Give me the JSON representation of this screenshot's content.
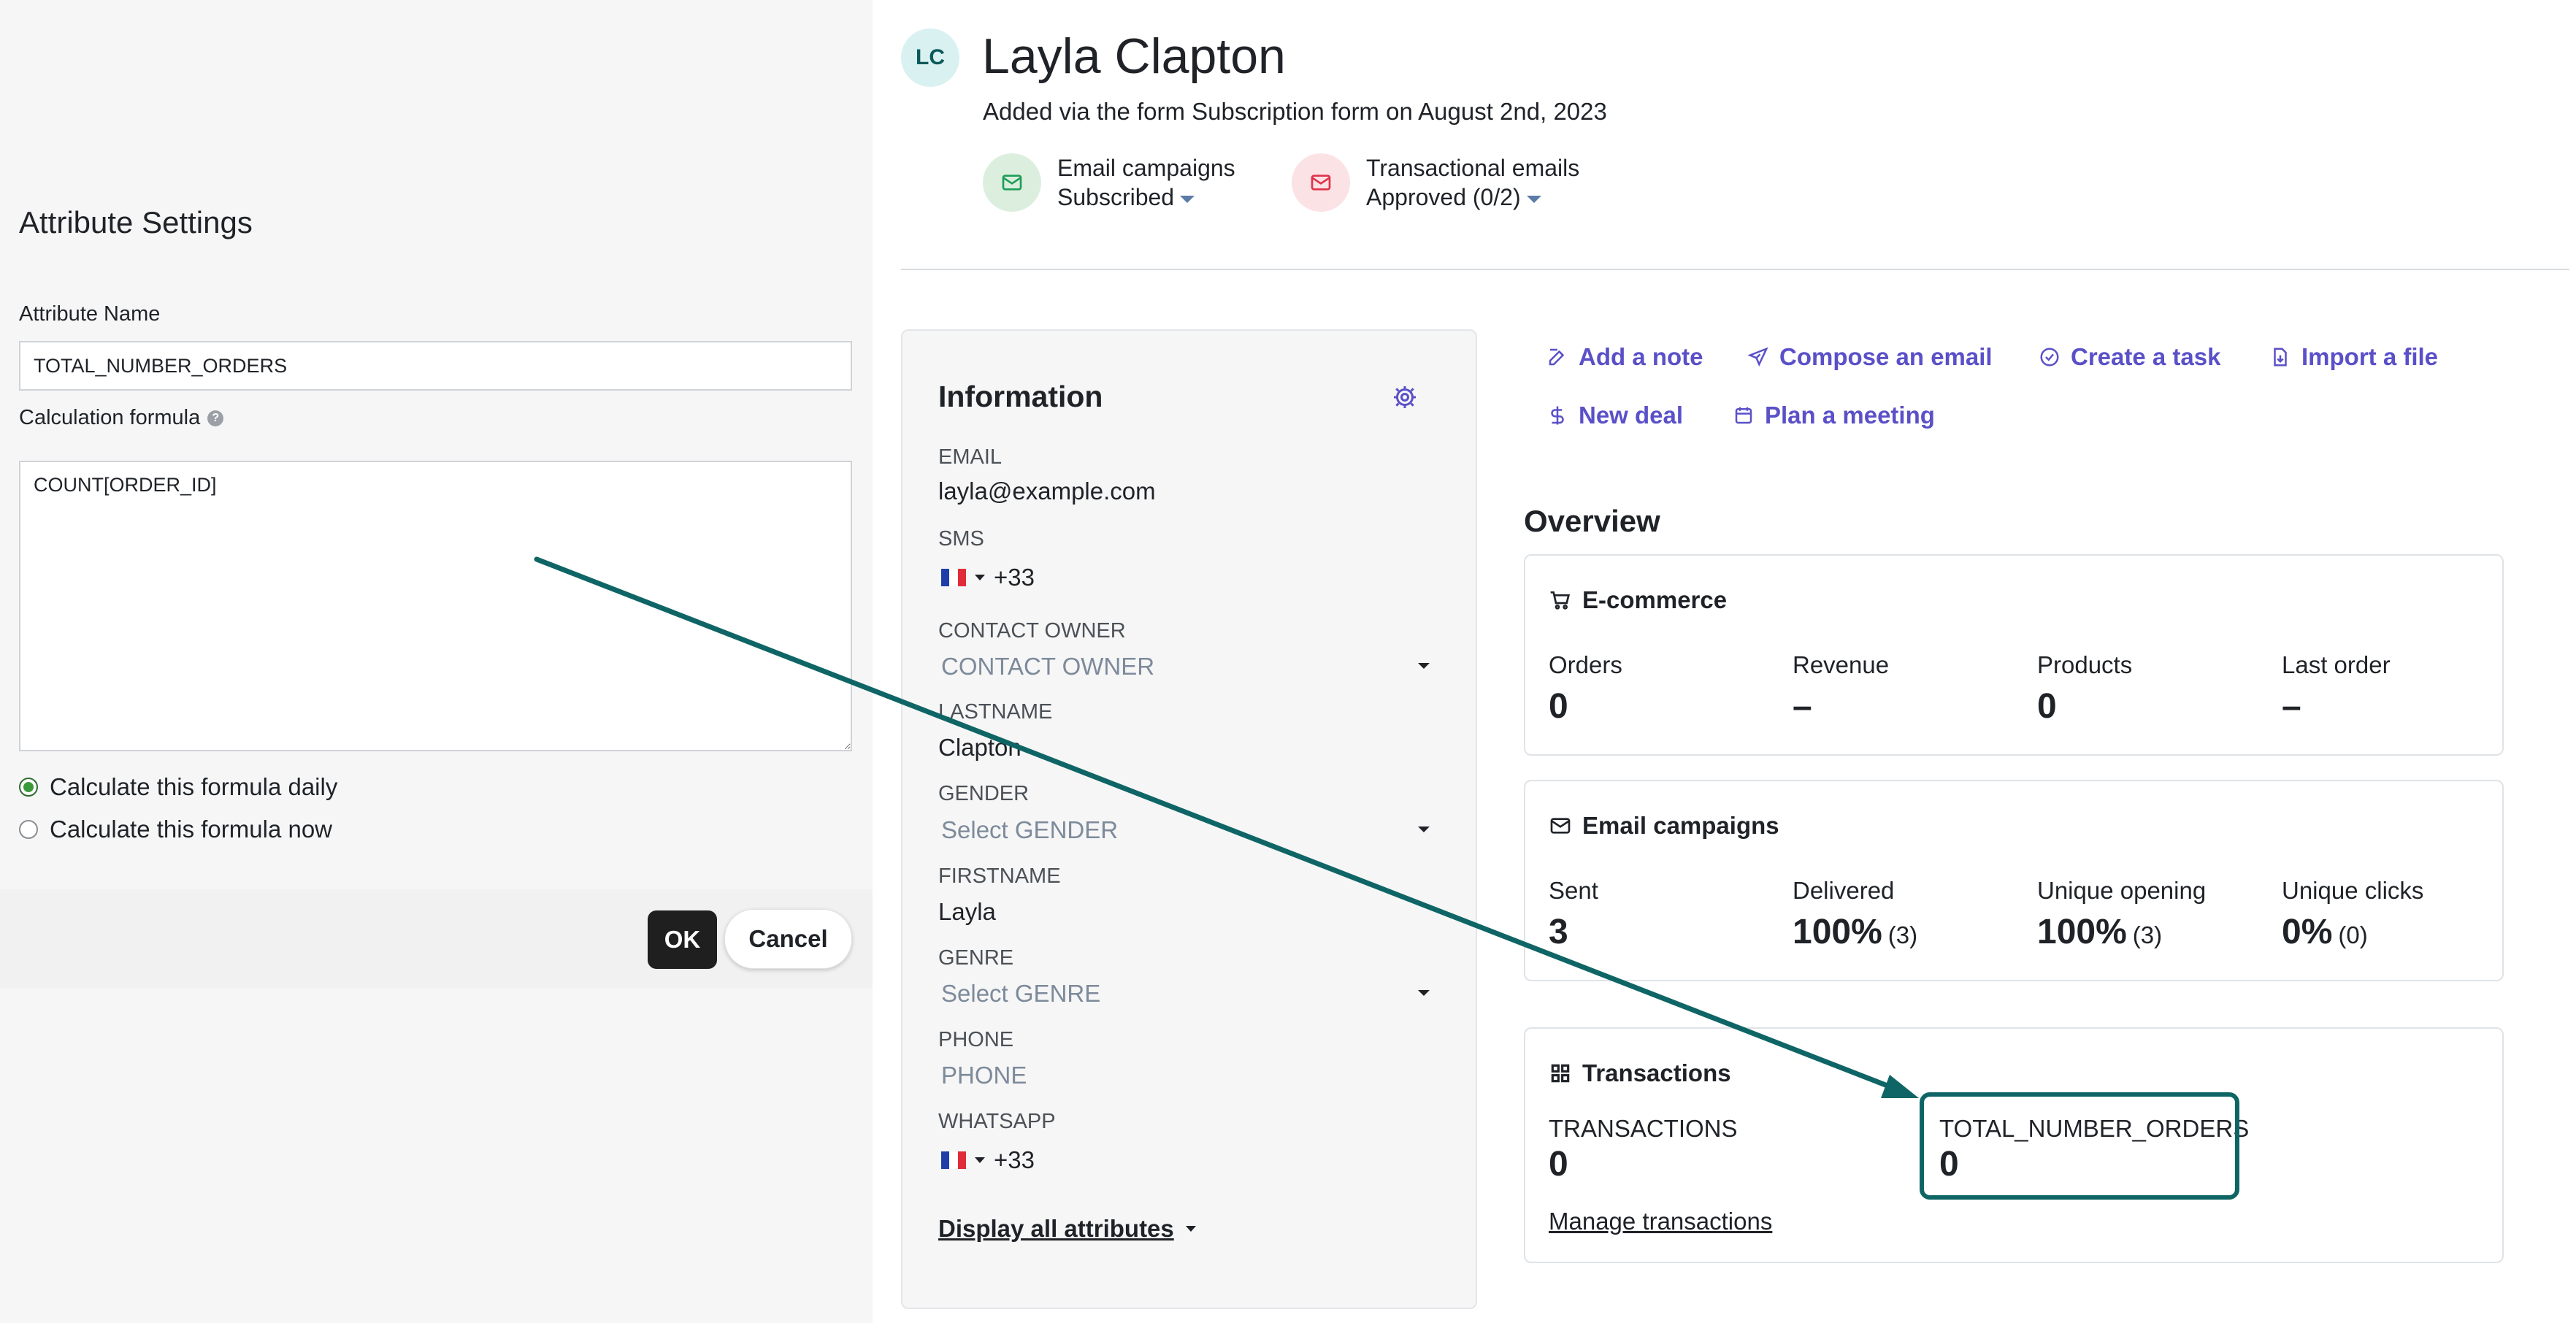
{
  "attribute_settings": {
    "title": "Attribute Settings",
    "name_label": "Attribute Name",
    "name_value": "TOTAL_NUMBER_ORDERS",
    "formula_label": "Calculation formula",
    "help_glyph": "?",
    "formula_value": "COUNT[ORDER_ID]",
    "radio_daily": "Calculate this formula daily",
    "radio_now": "Calculate this formula now",
    "selected": "daily",
    "ok_label": "OK",
    "cancel_label": "Cancel"
  },
  "contact": {
    "initials": "LC",
    "name": "Layla Clapton",
    "subtitle": "Added via the form Subscription form on August 2nd, 2023",
    "email_campaigns": {
      "title": "Email campaigns",
      "status": "Subscribed",
      "icon": "mail-icon",
      "color": "#1e9e57"
    },
    "transactional": {
      "title": "Transactional emails",
      "status": "Approved (0/2)",
      "icon": "mail-icon",
      "color": "#e0334a"
    }
  },
  "information": {
    "title": "Information",
    "fields": {
      "email": {
        "label": "EMAIL",
        "value": "layla@example.com"
      },
      "sms": {
        "label": "SMS",
        "value": "+33"
      },
      "contact_owner": {
        "label": "CONTACT OWNER",
        "value": "CONTACT OWNER"
      },
      "lastname": {
        "label": "LASTNAME",
        "value": "Clapton"
      },
      "gender": {
        "label": "GENDER",
        "value": "Select GENDER"
      },
      "firstname": {
        "label": "FIRSTNAME",
        "value": "Layla"
      },
      "genre": {
        "label": "GENRE",
        "value": "Select GENRE"
      },
      "phone": {
        "label": "PHONE",
        "value": "PHONE"
      },
      "whatsapp": {
        "label": "WHATSAPP",
        "value": "+33"
      }
    },
    "display_all": "Display all attributes"
  },
  "actions": {
    "add_note": "Add a note",
    "compose_email": "Compose an email",
    "create_task": "Create a task",
    "import_file": "Import a file",
    "new_deal": "New deal",
    "plan_meeting": "Plan a meeting",
    "color": "#5a50c8"
  },
  "overview": {
    "title": "Overview",
    "ecommerce": {
      "title": "E-commerce",
      "orders_label": "Orders",
      "orders_value": "0",
      "revenue_label": "Revenue",
      "revenue_value": "–",
      "products_label": "Products",
      "products_value": "0",
      "last_order_label": "Last order",
      "last_order_value": "–"
    },
    "email_campaigns": {
      "title": "Email campaigns",
      "sent_label": "Sent",
      "sent_value": "3",
      "delivered_label": "Delivered",
      "delivered_value": "100%",
      "delivered_count": "(3)",
      "opening_label": "Unique opening",
      "opening_value": "100%",
      "opening_count": "(3)",
      "clicks_label": "Unique clicks",
      "clicks_value": "0%",
      "clicks_count": "(0)"
    },
    "transactions": {
      "title": "Transactions",
      "transactions_label": "TRANSACTIONS",
      "transactions_value": "0",
      "total_orders_label": "TOTAL_NUMBER_ORDERS",
      "total_orders_value": "0",
      "manage_link": "Manage transactions",
      "highlight_color": "#0f6565"
    }
  }
}
